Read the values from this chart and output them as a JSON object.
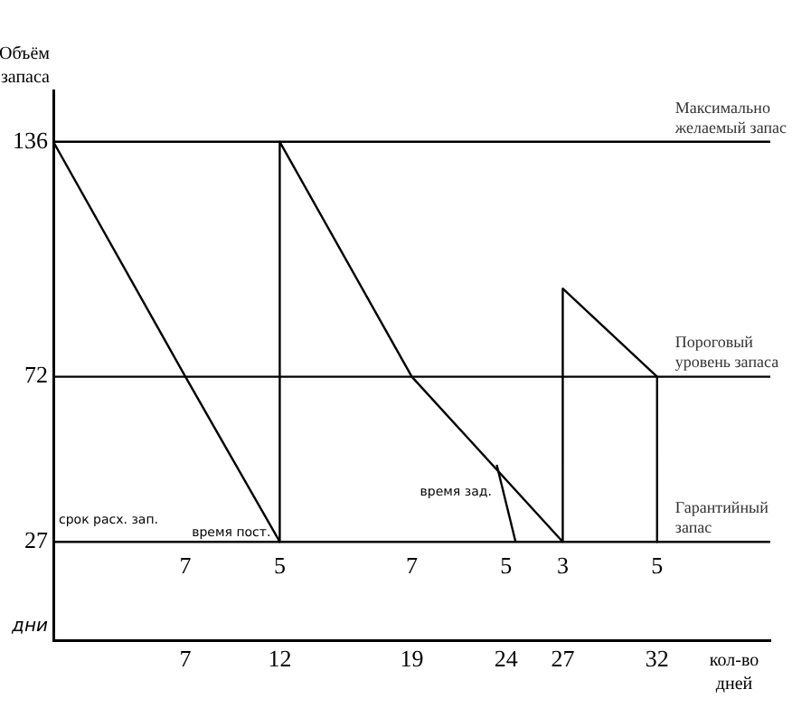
{
  "chart_data": {
    "type": "line",
    "ylabel": "Объём запаса",
    "xlabel": "кол-во дней",
    "x": [
      0,
      7,
      12,
      12,
      19,
      27,
      27,
      32,
      32
    ],
    "series": [
      {
        "color": "#000000",
        "values": [
          136,
          72,
          27,
          136,
          72,
          27,
          96,
          72,
          27
        ]
      },
      {
        "color": "#000000",
        "x": [
          23.5,
          24.5
        ],
        "values": [
          48,
          27
        ]
      }
    ],
    "xlim": [
      0,
      38
    ],
    "xticks": [
      7,
      12,
      19,
      24,
      27,
      32
    ],
    "ylim": [
      0,
      150
    ],
    "yticks": [
      27,
      72,
      136
    ],
    "marker": "none",
    "ref_lines": [
      {
        "axis": "y",
        "value": 136,
        "label": "Максимально желаемый запас",
        "color": "#000000"
      },
      {
        "axis": "y",
        "value": 72,
        "label": "Пороговый уровень запаса",
        "color": "#000000"
      },
      {
        "axis": "y",
        "value": 27,
        "label": "Гарантийный запас",
        "color": "#000000"
      }
    ],
    "annotations": [
      "7",
      "5",
      "7",
      "5",
      "3",
      "5",
      "срок расх. зап.",
      "время пост.",
      "время зад.",
      "дни"
    ]
  }
}
